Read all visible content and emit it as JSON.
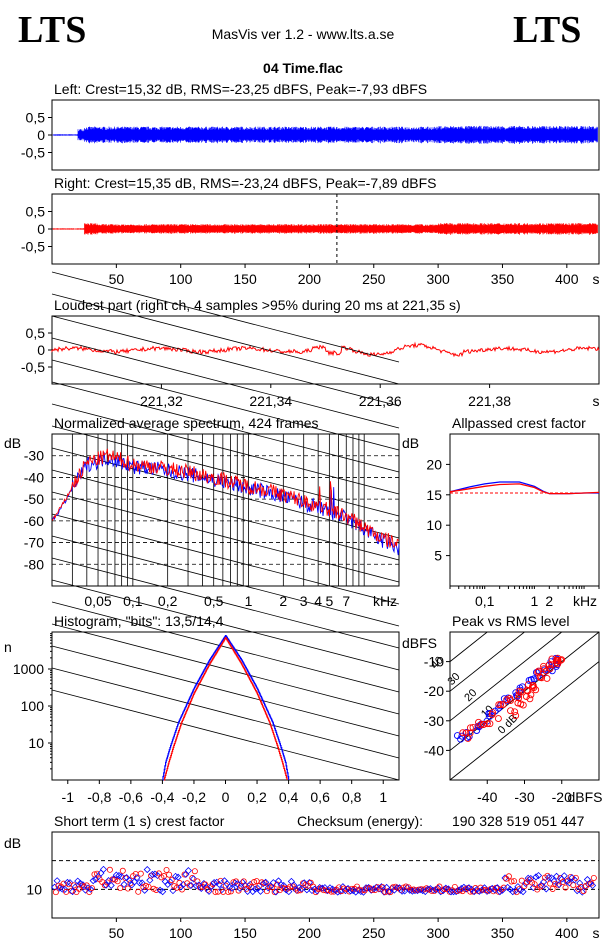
{
  "header": {
    "logo_left": "LTS",
    "logo_right": "LTS",
    "app_title": "MasVis ver 1.2 - www.lts.a.se",
    "file_title": "04 Time.flac"
  },
  "colors": {
    "left": "#0000ff",
    "right": "#ff0000",
    "grid": "#000000",
    "background": "#ffffff"
  },
  "chart_data": [
    {
      "id": "left_wave",
      "type": "line",
      "title": "Left: Crest=15,32 dB, RMS=-23,25 dBFS, Peak=-7,93 dBFS",
      "crest_db": 15.32,
      "rms_dbfs": -23.25,
      "peak_dbfs": -7.93,
      "yticks": [
        "0,5",
        "0",
        "-0,5"
      ],
      "ylim": [
        -1,
        1
      ],
      "xlim": [
        0,
        425
      ],
      "envelope_segments": [
        [
          0,
          20,
          0.02
        ],
        [
          20,
          25,
          0.18
        ],
        [
          25,
          300,
          0.24
        ],
        [
          300,
          425,
          0.26
        ]
      ],
      "grid": false
    },
    {
      "id": "right_wave",
      "type": "line",
      "title": "Right: Crest=15,35 dB, RMS=-23,24 dBFS, Peak=-7,89 dBFS",
      "crest_db": 15.35,
      "rms_dbfs": -23.24,
      "peak_dbfs": -7.89,
      "yticks": [
        "0,5",
        "0",
        "-0,5"
      ],
      "ylim": [
        -1,
        1
      ],
      "xlim": [
        0,
        425
      ],
      "loudest_marker_s": 221.35,
      "envelope_segments": [
        [
          0,
          25,
          0.02
        ],
        [
          25,
          35,
          0.17
        ],
        [
          35,
          300,
          0.14
        ],
        [
          300,
          425,
          0.17
        ]
      ],
      "xticks": [
        50,
        100,
        150,
        200,
        250,
        300,
        350,
        400
      ],
      "xunit": "s"
    },
    {
      "id": "loudest",
      "type": "line",
      "title": "Loudest part (right ch, 4 samples >95% during 20 ms at 221,35 s)",
      "yticks": [
        "0,5",
        "0",
        "-0,5"
      ],
      "ylim": [
        -1,
        1
      ],
      "xlim": [
        221.3,
        221.4
      ],
      "xticks": [
        "221,32",
        "221,34",
        "221,36",
        "221,38"
      ],
      "xtick_values": [
        221.32,
        221.34,
        221.36,
        221.38
      ],
      "xunit": "s"
    },
    {
      "id": "spectrum",
      "type": "line",
      "title": "Normalized average spectrum, 424 frames",
      "ylabel": "dB",
      "yticks": [
        -30,
        -40,
        -50,
        -60,
        -70,
        -80
      ],
      "ylim": [
        -90,
        -20
      ],
      "xticks": [
        "0,05",
        "0,1",
        "0,2",
        "0,5",
        "1",
        "2",
        "3",
        "4",
        "5",
        "7"
      ],
      "xtick_values": [
        0.05,
        0.1,
        0.2,
        0.5,
        1,
        2,
        3,
        4,
        5,
        7
      ],
      "xunit": "kHz",
      "xscale": "log",
      "xlim": [
        0.02,
        20
      ],
      "series": [
        {
          "color": "blue",
          "x": [
            0.02,
            0.03,
            0.04,
            0.06,
            0.1,
            0.2,
            0.4,
            0.7,
            1,
            2,
            3,
            5,
            7,
            10,
            14,
            20
          ],
          "y": [
            -60,
            -45,
            -34,
            -31,
            -35,
            -37,
            -40,
            -43,
            -45,
            -49,
            -52,
            -56,
            -59,
            -64,
            -69,
            -73
          ]
        },
        {
          "color": "red",
          "x": [
            0.02,
            0.03,
            0.04,
            0.06,
            0.1,
            0.2,
            0.4,
            0.7,
            1,
            2,
            3,
            5,
            7,
            10,
            14,
            20
          ],
          "y": [
            -60,
            -44,
            -33,
            -30,
            -34,
            -36,
            -39,
            -42,
            -44,
            -48,
            -51,
            -55,
            -58,
            -63,
            -68,
            -71
          ]
        }
      ]
    },
    {
      "id": "allpass",
      "type": "line",
      "title": "Allpassed crest factor",
      "ylabel": "dB",
      "yticks": [
        20,
        15,
        10,
        5
      ],
      "ylim": [
        0,
        25
      ],
      "xticks": [
        "0,1",
        "1",
        "2"
      ],
      "xtick_values": [
        0.1,
        1,
        2
      ],
      "xunit": "kHz",
      "xscale": "log",
      "xlim": [
        0.02,
        20
      ],
      "reference_db": 15.3,
      "series": [
        {
          "color": "blue",
          "x": [
            0.02,
            0.05,
            0.1,
            0.2,
            0.5,
            1,
            1.5,
            2,
            5,
            10,
            20
          ],
          "y": [
            15.5,
            16.3,
            16.8,
            17.1,
            17.1,
            16.4,
            15.6,
            15.2,
            15.2,
            15.3,
            15.3
          ]
        },
        {
          "color": "red",
          "x": [
            0.02,
            0.05,
            0.1,
            0.2,
            0.5,
            1,
            1.5,
            2,
            5,
            10,
            20
          ],
          "y": [
            15.5,
            16.0,
            16.4,
            16.7,
            16.8,
            16.2,
            15.5,
            15.2,
            15.2,
            15.3,
            15.4
          ]
        }
      ]
    },
    {
      "id": "histogram",
      "type": "line",
      "title": "Histogram, \"bits\": 13,5/14,4",
      "bits_left": 13.5,
      "bits_right": 14.4,
      "ylabel": "n",
      "yscale": "log",
      "yticks": [
        "1000",
        "100",
        "10"
      ],
      "ytick_values": [
        1000,
        100,
        10
      ],
      "xticks": [
        "-1",
        "-0,8",
        "-0,6",
        "-0,4",
        "-0,2",
        "0",
        "0,2",
        "0,4",
        "0,6",
        "0,8",
        "1"
      ],
      "xtick_values": [
        -1,
        -0.8,
        -0.6,
        -0.4,
        -0.2,
        0,
        0.2,
        0.4,
        0.6,
        0.8,
        1
      ],
      "xlim": [
        -1.1,
        1.1
      ],
      "series": [
        {
          "color": "blue",
          "x": [
            -0.4,
            -0.38,
            -0.35,
            -0.3,
            -0.2,
            -0.1,
            0,
            0.1,
            0.2,
            0.3,
            0.35,
            0.38,
            0.4
          ],
          "y": [
            1,
            3,
            8,
            35,
            300,
            1800,
            8000,
            1800,
            300,
            35,
            8,
            3,
            1
          ]
        },
        {
          "color": "red",
          "x": [
            -0.39,
            -0.36,
            -0.33,
            -0.28,
            -0.2,
            -0.1,
            0,
            0.1,
            0.2,
            0.28,
            0.33,
            0.36,
            0.39
          ],
          "y": [
            1,
            3,
            8,
            35,
            220,
            1400,
            7000,
            1400,
            220,
            35,
            8,
            3,
            1
          ]
        }
      ]
    },
    {
      "id": "peak_vs_rms",
      "type": "scatter",
      "title": "Peak vs RMS level",
      "ylabel": "dBFS",
      "yticks": [
        -10,
        -20,
        -30,
        -40
      ],
      "ylim": [
        -50,
        0
      ],
      "xlabel": "dBFS",
      "xticks": [
        -40,
        -30,
        -20
      ],
      "xlim": [
        -50,
        -10
      ],
      "crest_lines": [
        "0 dB",
        "10",
        "20",
        "30",
        "40"
      ],
      "series": [
        {
          "color": "blue",
          "x": [
            -47,
            -45,
            -43,
            -41,
            -39,
            -37,
            -35,
            -33,
            -31,
            -29,
            -27,
            -25,
            -23,
            -22,
            -21
          ],
          "y": [
            -36,
            -35,
            -33,
            -31,
            -28,
            -26,
            -23,
            -21,
            -19,
            -17,
            -15,
            -14,
            -12,
            -11,
            -10
          ]
        },
        {
          "color": "red",
          "x": [
            -46,
            -44,
            -42,
            -40,
            -38,
            -36,
            -34,
            -32,
            -30,
            -28,
            -26,
            -24,
            -23,
            -22,
            -21,
            -20,
            -25,
            -27,
            -29,
            -31,
            -33
          ],
          "y": [
            -35,
            -33,
            -31,
            -30,
            -28,
            -25,
            -23,
            -21,
            -19,
            -17,
            -14,
            -12,
            -11,
            -10,
            -10,
            -9,
            -15,
            -19,
            -22,
            -24,
            -27
          ]
        }
      ]
    },
    {
      "id": "short_term_crest",
      "type": "scatter",
      "title": "Short term (1 s) crest factor",
      "checksum_label": "Checksum (energy):",
      "checksum_value": "190 328 519 051 447",
      "ylabel": "dB",
      "yticks": [
        "10"
      ],
      "ytick_values": [
        10
      ],
      "ylim": [
        0,
        30
      ],
      "xlim": [
        0,
        425
      ],
      "reference_lines_db": [
        10,
        20
      ],
      "xticks": [
        50,
        100,
        150,
        200,
        250,
        300,
        350,
        400
      ],
      "xunit": "s",
      "envelope_segments": [
        [
          0,
          30,
          10,
          14
        ],
        [
          30,
          50,
          12,
          18
        ],
        [
          50,
          110,
          10,
          18
        ],
        [
          110,
          200,
          10,
          14
        ],
        [
          200,
          350,
          10,
          12
        ],
        [
          350,
          425,
          10,
          16
        ]
      ]
    }
  ]
}
